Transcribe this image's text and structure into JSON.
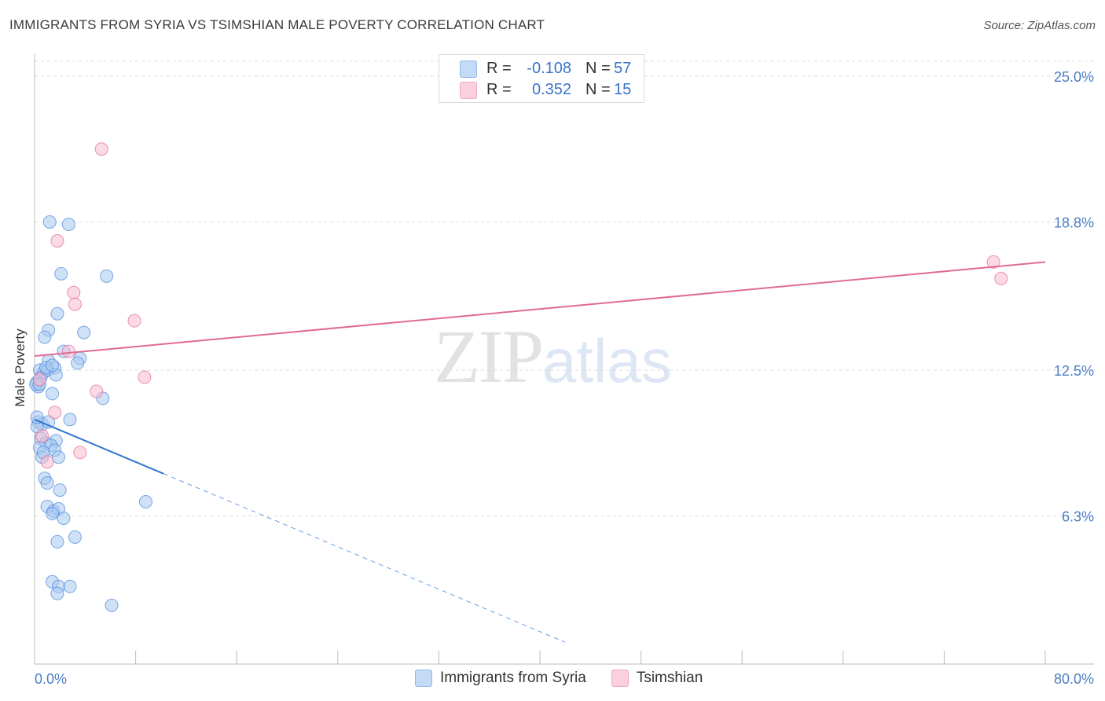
{
  "header": {
    "title": "IMMIGRANTS FROM SYRIA VS TSIMSHIAN MALE POVERTY CORRELATION CHART",
    "source": "Source: ZipAtlas.com"
  },
  "watermark": {
    "zip": "ZIP",
    "atlas": "atlas"
  },
  "legend": {
    "rows": [
      {
        "r_label": "R =",
        "r_value": "-0.108",
        "n_label": "N =",
        "n_value": "57",
        "color": "#a8c8f0"
      },
      {
        "r_label": "R =",
        "r_value": "0.352",
        "n_label": "N =",
        "n_value": "15",
        "color": "#f7bccf"
      }
    ]
  },
  "chart_data": {
    "type": "scatter",
    "title": "IMMIGRANTS FROM SYRIA VS TSIMSHIAN MALE POVERTY CORRELATION CHART",
    "xlabel": "",
    "ylabel": "Male Poverty",
    "xlim": [
      0,
      80
    ],
    "ylim": [
      0,
      25.0
    ],
    "x_tick_labels": [
      "0.0%",
      "80.0%"
    ],
    "y_ticks": [
      6.3,
      12.5,
      18.8,
      25.0
    ],
    "y_tick_labels": [
      "6.3%",
      "12.5%",
      "18.8%",
      "25.0%"
    ],
    "series": [
      {
        "name": "Immigrants from Syria",
        "color": "#4a86d8",
        "fill": "#a8c8f0",
        "r": -0.108,
        "n": 57,
        "trend": {
          "x0": 0.0,
          "y0": 10.4,
          "x1": 10.2,
          "y1": 8.1,
          "dash_x1": 42.0
        },
        "points": [
          [
            1.2,
            18.8
          ],
          [
            2.7,
            18.7
          ],
          [
            2.1,
            16.6
          ],
          [
            5.7,
            16.5
          ],
          [
            1.8,
            14.9
          ],
          [
            1.1,
            14.2
          ],
          [
            3.9,
            14.1
          ],
          [
            0.8,
            13.9
          ],
          [
            2.3,
            13.3
          ],
          [
            3.6,
            13.0
          ],
          [
            1.1,
            12.9
          ],
          [
            1.6,
            12.6
          ],
          [
            0.7,
            12.4
          ],
          [
            0.4,
            12.5
          ],
          [
            1.0,
            12.5
          ],
          [
            3.4,
            12.8
          ],
          [
            1.7,
            12.3
          ],
          [
            0.5,
            12.2
          ],
          [
            0.2,
            12.0
          ],
          [
            0.3,
            11.8
          ],
          [
            0.1,
            11.9
          ],
          [
            1.4,
            11.5
          ],
          [
            5.4,
            11.3
          ],
          [
            0.3,
            10.3
          ],
          [
            0.6,
            10.2
          ],
          [
            2.8,
            10.4
          ],
          [
            0.2,
            10.1
          ],
          [
            0.5,
            9.6
          ],
          [
            1.7,
            9.5
          ],
          [
            0.9,
            9.4
          ],
          [
            1.3,
            9.3
          ],
          [
            1.6,
            9.1
          ],
          [
            0.4,
            9.2
          ],
          [
            0.6,
            8.8
          ],
          [
            1.9,
            8.8
          ],
          [
            0.8,
            7.9
          ],
          [
            1.0,
            7.7
          ],
          [
            2.0,
            7.4
          ],
          [
            8.8,
            6.9
          ],
          [
            1.0,
            6.7
          ],
          [
            1.5,
            6.5
          ],
          [
            1.9,
            6.6
          ],
          [
            1.4,
            6.4
          ],
          [
            2.3,
            6.2
          ],
          [
            3.2,
            5.4
          ],
          [
            1.8,
            5.2
          ],
          [
            1.4,
            3.5
          ],
          [
            1.9,
            3.3
          ],
          [
            2.8,
            3.3
          ],
          [
            1.8,
            3.0
          ],
          [
            6.1,
            2.5
          ],
          [
            0.4,
            11.9
          ],
          [
            0.9,
            12.6
          ],
          [
            0.2,
            10.5
          ],
          [
            1.1,
            10.3
          ],
          [
            0.7,
            9.0
          ],
          [
            1.4,
            12.7
          ]
        ]
      },
      {
        "name": "Tsimshian",
        "color": "#e06a94",
        "fill": "#f7bccf",
        "r": 0.352,
        "n": 15,
        "trend": {
          "x0": 0.0,
          "y0": 13.1,
          "x1": 80.0,
          "y1": 17.1
        },
        "points": [
          [
            5.3,
            21.9
          ],
          [
            1.8,
            18.0
          ],
          [
            3.1,
            15.8
          ],
          [
            3.2,
            15.3
          ],
          [
            7.9,
            14.6
          ],
          [
            2.7,
            13.3
          ],
          [
            8.7,
            12.2
          ],
          [
            4.9,
            11.6
          ],
          [
            1.6,
            10.7
          ],
          [
            3.6,
            9.0
          ],
          [
            1.0,
            8.6
          ],
          [
            0.6,
            9.7
          ],
          [
            75.9,
            17.1
          ],
          [
            76.5,
            16.4
          ],
          [
            0.4,
            12.1
          ]
        ]
      }
    ]
  }
}
